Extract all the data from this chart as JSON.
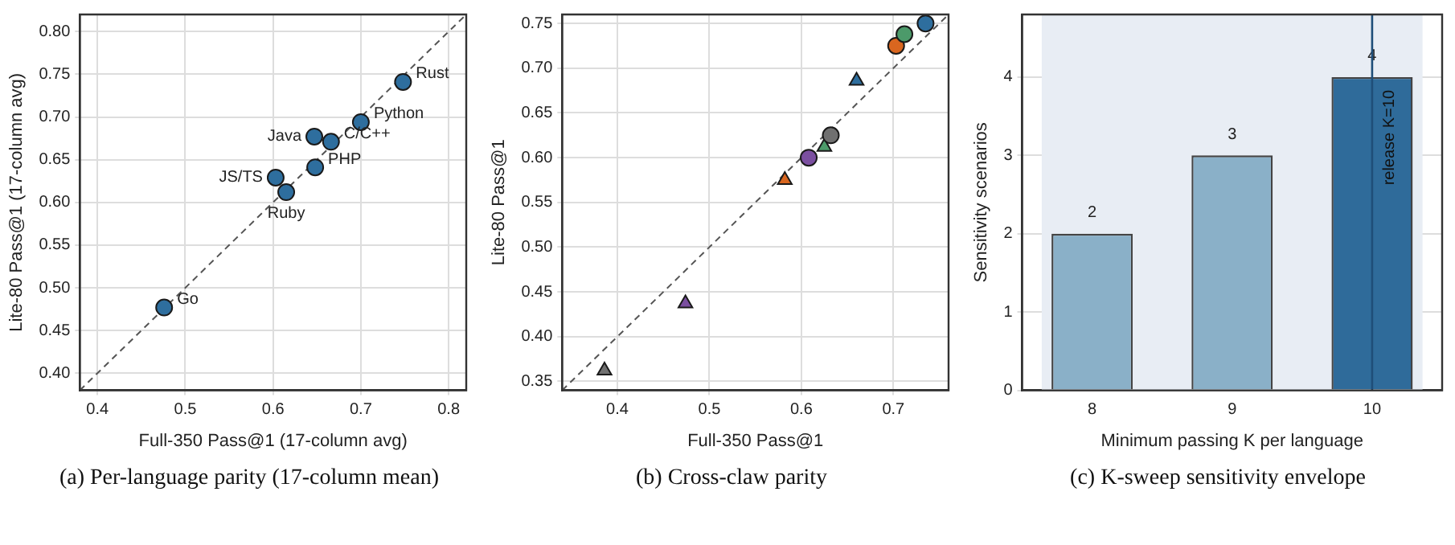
{
  "chart_data": [
    {
      "type": "scatter",
      "title": "(a) Per-language parity (17-column mean)",
      "xlabel": "Full-350 Pass@1 (17-column avg)",
      "ylabel": "Lite-80 Pass@1 (17-column avg)",
      "xlim": [
        0.38,
        0.82
      ],
      "ylim": [
        0.38,
        0.82
      ],
      "xticks": [
        0.4,
        0.5,
        0.6,
        0.7,
        0.8
      ],
      "yticks": [
        {
          "value": 0.4,
          "label": "0.40"
        },
        0.45,
        {
          "value": 0.5,
          "label": "0.50"
        },
        0.55,
        {
          "value": 0.6,
          "label": "0.60"
        },
        0.65,
        {
          "value": 0.7,
          "label": "0.70"
        },
        0.75,
        {
          "value": 0.8,
          "label": "0.80"
        }
      ],
      "grid": true,
      "marker": "circle",
      "series": [
        {
          "color": "#2e6e9e",
          "x": [
            0.476,
            0.603,
            0.615,
            0.648,
            0.647,
            0.666,
            0.7,
            0.748
          ],
          "values": [
            0.477,
            0.629,
            0.612,
            0.641,
            0.677,
            0.671,
            0.694,
            0.741
          ]
        },
        {
          "type": "line",
          "color": "#555555",
          "line_style": "dashed",
          "marker": "none",
          "x": [
            0.38,
            0.82
          ],
          "values": [
            0.38,
            0.82
          ]
        }
      ],
      "annotations": [
        {
          "text": "Go",
          "x": 0.476,
          "y": 0.477
        },
        {
          "text": "Ruby",
          "x": 0.615,
          "y": 0.612
        },
        {
          "text": "JS/TS",
          "x": 0.603,
          "y": 0.629
        },
        {
          "text": "PHP",
          "x": 0.648,
          "y": 0.641
        },
        {
          "text": "Python",
          "x": 0.7,
          "y": 0.694
        },
        {
          "text": "Java",
          "x": 0.647,
          "y": 0.677
        },
        {
          "text": "C/C++",
          "x": 0.666,
          "y": 0.671
        },
        {
          "text": "Rust",
          "x": 0.748,
          "y": 0.741
        }
      ]
    },
    {
      "type": "scatter",
      "title": "(b) Cross-claw parity",
      "xlabel": "Full-350 Pass@1",
      "ylabel": "Lite-80 Pass@1",
      "xlim": [
        0.34,
        0.76
      ],
      "ylim": [
        0.34,
        0.76
      ],
      "xticks": [
        0.4,
        0.5,
        0.6,
        0.7
      ],
      "yticks": [
        0.35,
        {
          "value": 0.4,
          "label": "0.40"
        },
        0.45,
        {
          "value": 0.5,
          "label": "0.50"
        },
        0.55,
        {
          "value": 0.6,
          "label": "0.60"
        },
        0.65,
        {
          "value": 0.7,
          "label": "0.70"
        },
        0.75
      ],
      "grid": true,
      "series": [
        {
          "color": "#2e6e9e",
          "marker": "circle",
          "x": [
            0.735
          ],
          "values": [
            0.75
          ]
        },
        {
          "color": "#4c9a6a",
          "marker": "circle",
          "x": [
            0.712
          ],
          "values": [
            0.738
          ]
        },
        {
          "color": "#d9661f",
          "marker": "circle",
          "x": [
            0.703
          ],
          "values": [
            0.725
          ]
        },
        {
          "color": "#7b4fa0",
          "marker": "circle",
          "x": [
            0.608
          ],
          "values": [
            0.6
          ]
        },
        {
          "color": "#707070",
          "marker": "circle",
          "x": [
            0.632
          ],
          "values": [
            0.625
          ]
        },
        {
          "color": "#2e6e9e",
          "marker": "triangle",
          "x": [
            0.66
          ],
          "values": [
            0.686
          ]
        },
        {
          "color": "#4c9a6a",
          "marker": "triangle",
          "x": [
            0.625
          ],
          "values": [
            0.612
          ]
        },
        {
          "color": "#d9661f",
          "marker": "triangle",
          "x": [
            0.582
          ],
          "values": [
            0.575
          ]
        },
        {
          "color": "#7b4fa0",
          "marker": "triangle",
          "x": [
            0.474
          ],
          "values": [
            0.437
          ]
        },
        {
          "color": "#707070",
          "marker": "triangle",
          "x": [
            0.386
          ],
          "values": [
            0.362
          ]
        },
        {
          "type": "line",
          "color": "#555555",
          "line_style": "dashed",
          "marker": "none",
          "x": [
            0.34,
            0.76
          ],
          "values": [
            0.34,
            0.76
          ]
        }
      ]
    },
    {
      "type": "bar",
      "title": "(c) K-sweep sensitivity envelope",
      "xlabel": "Minimum passing K per language",
      "ylabel": "Sensitivity scenarios",
      "categories": [
        "8",
        "9",
        "10"
      ],
      "values": [
        2,
        3,
        4
      ],
      "colors": [
        "#8ab0c8",
        "#8ab0c8",
        "#2f6b9a"
      ],
      "ylim": [
        0,
        4.8
      ],
      "yticks": [
        0,
        1,
        2,
        3,
        4
      ],
      "grid": "y",
      "data_labels": true,
      "ref_lines": [
        {
          "axis": "x",
          "value": "10",
          "label": "release K=10",
          "color": "#1f4e79"
        }
      ],
      "bands": [
        {
          "axis": "x",
          "from": "8",
          "to": "10",
          "color": "#e8edf4"
        }
      ]
    }
  ]
}
